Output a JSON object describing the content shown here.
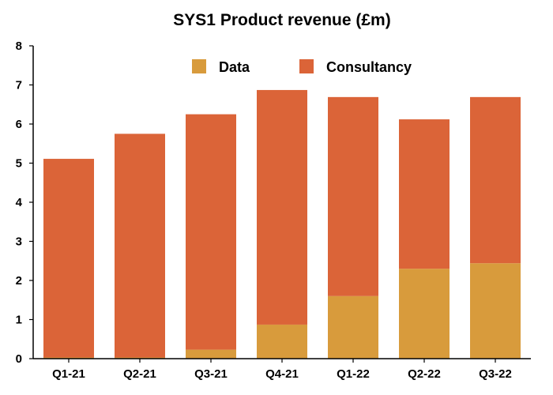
{
  "chart_data": {
    "type": "bar",
    "stacked": true,
    "title": "SYS1 Product revenue (£m)",
    "xlabel": "",
    "ylabel": "",
    "categories": [
      "Q1-21",
      "Q2-21",
      "Q3-21",
      "Q4-21",
      "Q1-22",
      "Q2-22",
      "Q3-22"
    ],
    "series": [
      {
        "name": "Data",
        "color": "#D89B3C",
        "values": [
          0.03,
          0.03,
          0.23,
          0.87,
          1.6,
          2.3,
          2.44
        ]
      },
      {
        "name": "Consultancy",
        "color": "#DB6438",
        "values": [
          5.08,
          5.72,
          6.02,
          6.0,
          5.09,
          3.82,
          4.25
        ]
      }
    ],
    "ylim": [
      0,
      8
    ],
    "yticks": [
      "0",
      "1",
      "2",
      "3",
      "4",
      "5",
      "6",
      "7",
      "8"
    ],
    "grid": false,
    "legend_position": "top-center"
  }
}
